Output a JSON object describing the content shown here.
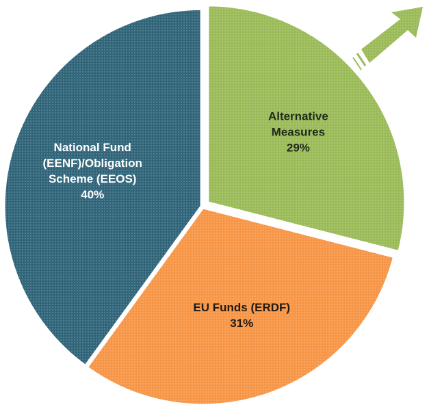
{
  "chart_data": {
    "type": "pie",
    "categories": [
      "Alternative Measures",
      "EU Funds (ERDF)",
      "National Fund (EENF)/Obligation Scheme (EEOS)"
    ],
    "values": [
      29,
      31,
      40
    ],
    "value_labels": [
      "29%",
      "31%",
      "40%"
    ],
    "colors": [
      "#9bbb59",
      "#f79646",
      "#31657a"
    ]
  }
}
